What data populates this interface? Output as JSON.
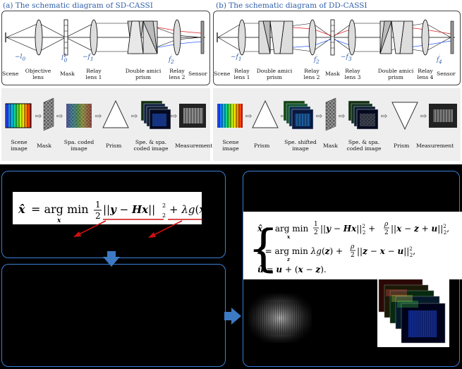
{
  "sd": {
    "title": "(a) The schematic diagram of SD-CASSI",
    "math": {
      "neg_l0": "−l",
      "neg_l0_sub": "0",
      "l0": "l",
      "l0_sub": "0",
      "l0_sup": "1",
      "neg_f1": "−f",
      "neg_f1_sub": "1",
      "f2": "f",
      "f2_sub": "2",
      "f2_sup": "′"
    },
    "labels": [
      "Scene",
      "Objective lens",
      "Mask",
      "Relay lens 1",
      "Double amici prism",
      "Relay lens 2",
      "Sensor"
    ],
    "process": [
      "Scene image",
      "Mask",
      "Spa. coded image",
      "Prism",
      "Spe. & spa. coded image",
      "Measurement"
    ]
  },
  "dd": {
    "title": "(b) The schematic diagram of DD-CASSI",
    "math": {
      "neg_f1": "−f",
      "neg_f1_sub": "1",
      "f2": "f",
      "f2_sub": "2",
      "f2_sup": "′",
      "neg_f3": "−f",
      "neg_f3_sub": "3",
      "f4": "f",
      "f4_sub": "4",
      "f4_sup": "′"
    },
    "labels": [
      "Scene",
      "Relay lens 1",
      "Double amici prism",
      "Relay lens 2",
      "Mask",
      "Relay lens 3",
      "Double amici prism",
      "Relay lens 4",
      "Sensor"
    ],
    "process": [
      "Scene image",
      "Prism",
      "Spe. shifted image",
      "Mask",
      "Spe. & spa. coded image",
      "Prism",
      "Measurement"
    ]
  },
  "colors": {
    "panel_border": "#3a7fd5",
    "arrow_blue": "#3d7ac4",
    "underline_red": "#d01010",
    "title_blue": "#2e5ea8"
  },
  "icons": {
    "flow_arrow": "hollow-right-arrow-icon",
    "down_arrow": "down-arrow-icon",
    "right_arrow": "right-arrow-icon"
  }
}
